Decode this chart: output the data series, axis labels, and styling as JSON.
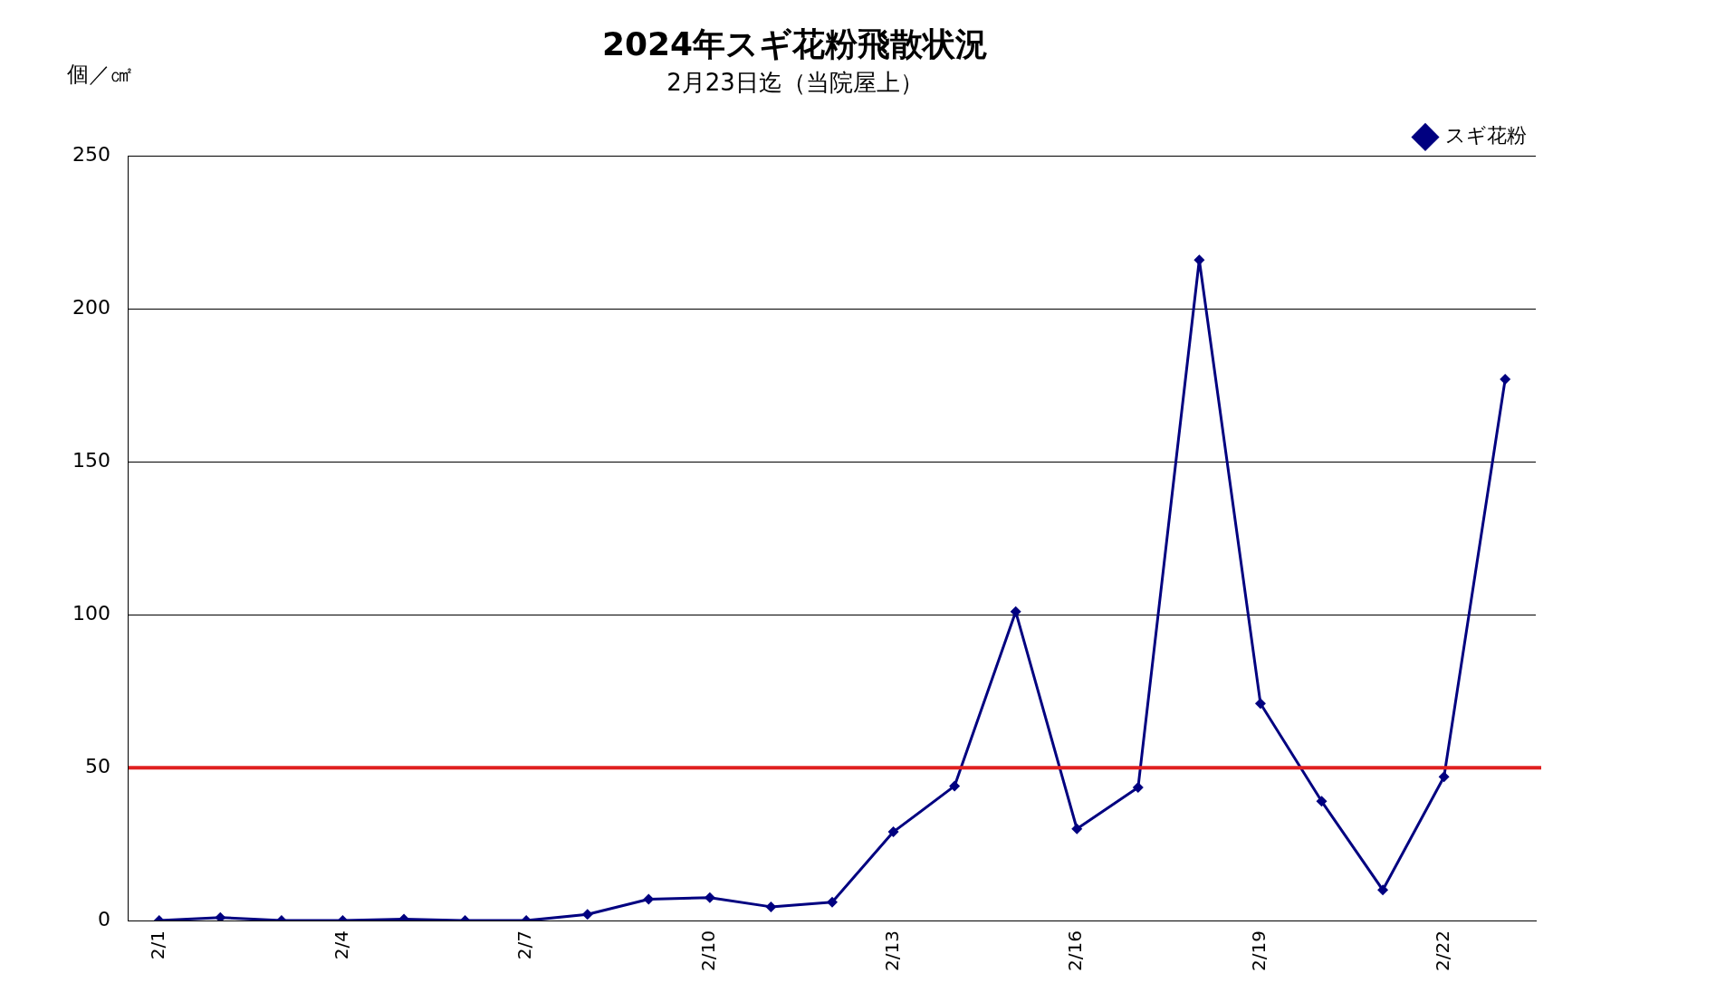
{
  "chart_data": {
    "type": "line",
    "title": "2024年スギ花粉飛散状況",
    "subtitle": "2月23日迄（当院屋上）",
    "ylabel": "個／㎠",
    "categories": [
      "2/1",
      null,
      null,
      "2/4",
      null,
      null,
      "2/7",
      null,
      null,
      "2/10",
      null,
      null,
      "2/13",
      null,
      null,
      "2/16",
      null,
      null,
      "2/19",
      null,
      null,
      "2/22",
      null
    ],
    "series": [
      {
        "name": "スギ花粉",
        "color": "#000080",
        "values": [
          0,
          1,
          0,
          0,
          0.5,
          0,
          0,
          2,
          7,
          7.5,
          4.5,
          6,
          29,
          44,
          101,
          30,
          43.5,
          216,
          71,
          39,
          10,
          47,
          177
        ]
      }
    ],
    "ylim": [
      0,
      250
    ],
    "yticks": [
      0,
      50,
      100,
      150,
      200,
      250
    ],
    "grid": "y",
    "legend": "top right",
    "marker": "diamond",
    "line_style": "solid",
    "ref_lines": [
      {
        "axis": "y",
        "value": 50,
        "color": "#e02020"
      }
    ]
  }
}
